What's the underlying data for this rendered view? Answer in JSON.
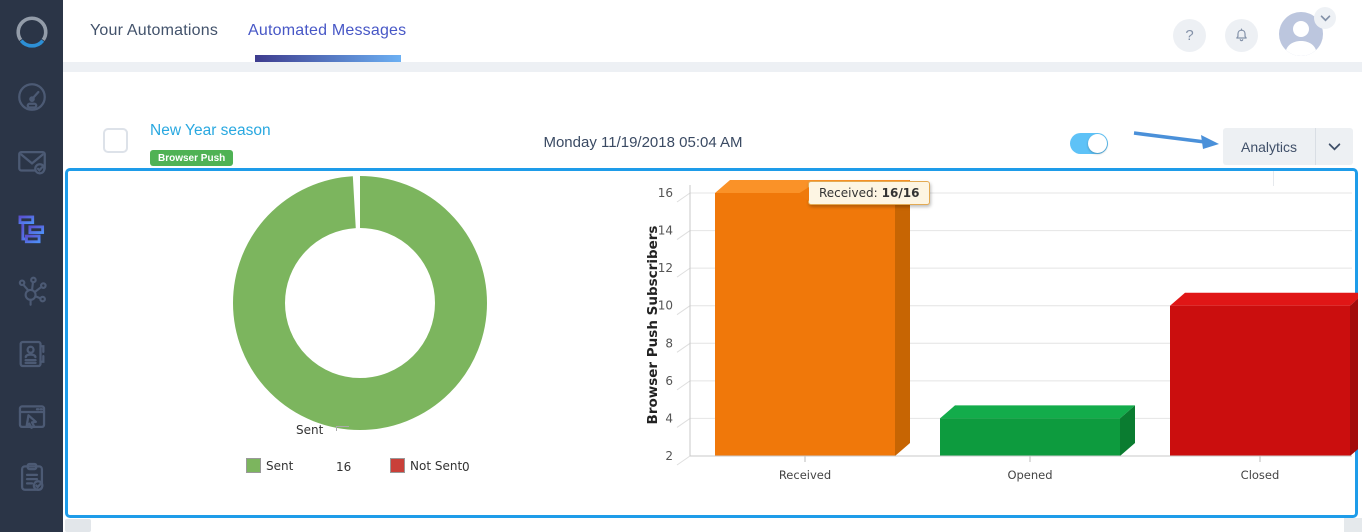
{
  "app": {
    "accent_blue": "#1e9ce9",
    "sidebar_bg": "#2b3547"
  },
  "sidebar": {
    "icons": [
      "brand-logo",
      "dashboard-gauge-icon",
      "email-campaigns-icon",
      "automations-flow-icon",
      "integrations-network-icon",
      "contacts-card-icon",
      "site-tracking-icon",
      "tasks-clipboard-icon"
    ],
    "active_item": "automations-flow-icon"
  },
  "header": {
    "tabs": [
      {
        "label": "Your Automations",
        "active": false
      },
      {
        "label": "Automated Messages",
        "active": true
      }
    ],
    "help_label": "?",
    "icons": [
      "help-icon",
      "bell-icon",
      "avatar",
      "chevron-down-icon"
    ]
  },
  "row": {
    "title": "New Year season",
    "badge": "Browser Push",
    "datetime": "Monday 11/19/2018 05:04 AM",
    "toggle_state": "on",
    "analytics_label": "Analytics"
  },
  "chart_data": [
    {
      "type": "pie",
      "donut": true,
      "labels": [
        "Sent",
        "Not Sent"
      ],
      "values": [
        16,
        0
      ],
      "colors": [
        "#7cb55e",
        "#c94039"
      ],
      "slice_label": "Sent",
      "legend_position": "bottom",
      "legend": [
        {
          "label": "Sent",
          "value": "16",
          "color": "#7cb55e"
        },
        {
          "label": "Not Sent",
          "value": "0",
          "color": "#c94039"
        }
      ]
    },
    {
      "type": "bar",
      "style": "3d-column",
      "categories": [
        "Received",
        "Opened",
        "Closed"
      ],
      "values": [
        16,
        4,
        10
      ],
      "bar_colors": [
        {
          "front": "#f0780a",
          "top": "#fa9228",
          "side": "#c76503"
        },
        {
          "front": "#0d9b3e",
          "top": "#13ac4b",
          "side": "#0a7c30"
        },
        {
          "front": "#cb0e0e",
          "top": "#e01616",
          "side": "#a30b0b"
        }
      ],
      "xlabel": "",
      "ylabel": "Browser Push Subscribers",
      "ylim": [
        2,
        16
      ],
      "yticks": [
        2,
        4,
        6,
        8,
        10,
        12,
        14,
        16
      ],
      "grid": true,
      "tooltip": {
        "label": "Received:",
        "value": "16/16",
        "target": "Received"
      }
    }
  ]
}
